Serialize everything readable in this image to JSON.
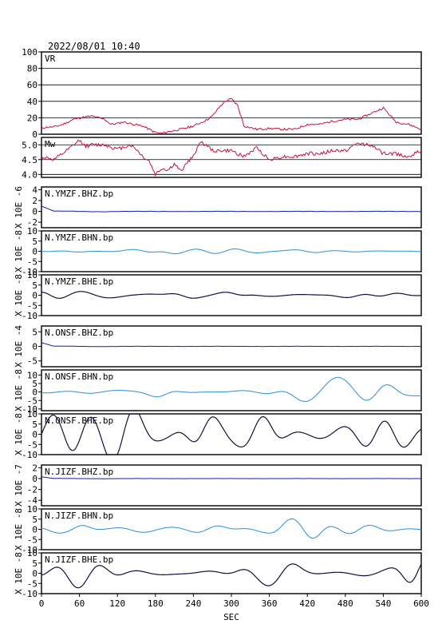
{
  "title": "2022/08/01 10:40",
  "xlabel": "SEC",
  "x_ticks": [
    0,
    60,
    120,
    180,
    240,
    300,
    360,
    420,
    480,
    540,
    600
  ],
  "colors": {
    "vr": "#c8103c",
    "mw": "#c8103c",
    "bhz": "#0b1fb0",
    "bhn": "#2a8fd8",
    "bhe": "#101040"
  },
  "chart_data": {
    "type": "line",
    "xlim": [
      0,
      600
    ],
    "panels": [
      {
        "label": "VR",
        "yticks": [
          "100",
          "80",
          "60",
          "40",
          "20",
          "0"
        ],
        "ylim": [
          0,
          100
        ],
        "grid": true,
        "exp": "",
        "kind": "vr",
        "x": [
          0,
          20,
          30,
          40,
          50,
          60,
          80,
          100,
          110,
          120,
          130,
          140,
          160,
          180,
          190,
          200,
          220,
          240,
          260,
          270,
          280,
          290,
          300,
          310,
          320,
          340,
          360,
          380,
          400,
          420,
          440,
          460,
          480,
          500,
          520,
          540,
          560,
          580,
          600
        ],
        "y": [
          8,
          9,
          11,
          14,
          18,
          20,
          22,
          18,
          12,
          13,
          15,
          13,
          10,
          2,
          1,
          3,
          6,
          10,
          17,
          22,
          32,
          40,
          43,
          35,
          10,
          6,
          7,
          6,
          6,
          12,
          12,
          16,
          18,
          18,
          25,
          32,
          15,
          12,
          6
        ]
      },
      {
        "label": "Mw",
        "yticks": [
          "5.0",
          "4.5",
          "4.0"
        ],
        "ylim": [
          3.9,
          5.25
        ],
        "grid": true,
        "exp": "",
        "kind": "mw",
        "x": [
          0,
          20,
          40,
          60,
          70,
          80,
          100,
          120,
          140,
          150,
          160,
          170,
          180,
          190,
          200,
          210,
          220,
          230,
          240,
          250,
          260,
          270,
          280,
          300,
          320,
          340,
          360,
          380,
          400,
          420,
          440,
          460,
          480,
          500,
          520,
          540,
          560,
          580,
          600
        ],
        "y": [
          4.6,
          4.5,
          4.8,
          5.15,
          4.95,
          5.0,
          5.0,
          4.85,
          5.0,
          4.85,
          4.6,
          4.45,
          4.0,
          4.2,
          4.15,
          4.35,
          4.1,
          4.4,
          4.6,
          5.1,
          5.0,
          4.8,
          4.8,
          4.8,
          4.6,
          4.9,
          4.5,
          4.6,
          4.6,
          4.7,
          4.7,
          4.8,
          4.8,
          5.05,
          5.0,
          4.7,
          4.7,
          4.6,
          4.8
        ]
      },
      {
        "label": "N.YMZF.BHZ.bp",
        "yticks": [
          "4",
          "2",
          "0",
          "-2"
        ],
        "ylim": [
          -3,
          4.5
        ],
        "exp": "X 10E -6",
        "kind": "bhz",
        "amp": 0.35,
        "seed": 1
      },
      {
        "label": "N.YMZF.BHN.bp",
        "yticks": [
          "10",
          "5",
          "0",
          "-5",
          "-10"
        ],
        "ylim": [
          -10,
          10
        ],
        "exp": "X 10E -8",
        "kind": "bhn",
        "amp": 0.8,
        "seed": 2
      },
      {
        "label": "N.YMZF.BHE.bp",
        "yticks": [
          "10",
          "5",
          "0",
          "-5",
          "-10"
        ],
        "ylim": [
          -10,
          10
        ],
        "exp": "X 10E -8",
        "kind": "bhe",
        "amp": 1.5,
        "seed": 3
      },
      {
        "label": "N.ONSF.BHZ.bp",
        "yticks": [
          "5",
          "0",
          "-5"
        ],
        "ylim": [
          -7,
          7
        ],
        "exp": "X 10E -4",
        "kind": "bhz",
        "amp": 0.45,
        "seed": 4
      },
      {
        "label": "N.ONSF.BHN.bp",
        "yticks": [
          "10",
          "5",
          "0",
          "-5",
          "-10"
        ],
        "ylim": [
          -11,
          13
        ],
        "exp": "X 10E -8",
        "kind": "bhn",
        "amp": 2.0,
        "seed": 5
      },
      {
        "label": "N.ONSF.BHE.bp",
        "yticks": [
          "10",
          "5",
          "0",
          "-5",
          "-10"
        ],
        "ylim": [
          -10,
          10
        ],
        "exp": "X 10E -8",
        "kind": "bhe",
        "amp": 5.0,
        "seed": 6
      },
      {
        "label": "N.JIZF.BHZ.bp",
        "yticks": [
          "2",
          "0",
          "-2",
          "-4"
        ],
        "ylim": [
          -5,
          2.5
        ],
        "exp": "X 10E -7",
        "kind": "bhz",
        "amp": 0.12,
        "seed": 7
      },
      {
        "label": "N.JIZF.BHN.bp",
        "yticks": [
          "10",
          "5",
          "0",
          "-5",
          "-10"
        ],
        "ylim": [
          -10,
          10
        ],
        "exp": "X 10E -8",
        "kind": "bhn",
        "amp": 1.4,
        "seed": 8
      },
      {
        "label": "N.JIZF.BHE.bp",
        "yticks": [
          "10",
          "5",
          "0",
          "-5",
          "-10"
        ],
        "ylim": [
          -10,
          10
        ],
        "exp": "X 10E -8",
        "kind": "bhe",
        "amp": 3.2,
        "seed": 9
      }
    ]
  }
}
